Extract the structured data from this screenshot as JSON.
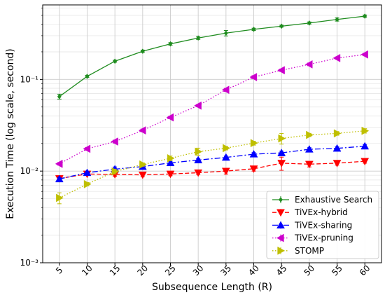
{
  "chart_data": {
    "type": "line",
    "xlabel": "Subsequence Length (R)",
    "ylabel": "Execution Time (log scale, second)",
    "yscale": "log",
    "xlim": [
      2,
      63
    ],
    "ylim": [
      0.001,
      0.65
    ],
    "x": [
      5,
      10,
      15,
      20,
      25,
      30,
      35,
      40,
      45,
      50,
      55,
      60
    ],
    "x_tick_labels": [
      "5",
      "10",
      "15",
      "20",
      "25",
      "30",
      "35",
      "40",
      "45",
      "50",
      "55",
      "60"
    ],
    "y_ticks": [
      0.001,
      0.01,
      0.1
    ],
    "y_tick_labels": [
      "10⁻³",
      "10⁻²",
      "10⁻¹"
    ],
    "grid": true,
    "legend_position": "lower-right",
    "series": [
      {
        "name": "Exhaustive Search",
        "color": "#1f8c1f",
        "linestyle": "solid",
        "marker": "diamond",
        "values": [
          0.065,
          0.108,
          0.158,
          0.203,
          0.244,
          0.283,
          0.32,
          0.352,
          0.381,
          0.412,
          0.451,
          0.49
        ],
        "errors": [
          0.004,
          0.003,
          0.004,
          0.006,
          0.008,
          0.01,
          0.022,
          0.01,
          0.009,
          0.012,
          0.018,
          0.015
        ]
      },
      {
        "name": "TiVEx-hybrid",
        "color": "#ff0000",
        "linestyle": "dashed",
        "marker": "triangle-down",
        "values": [
          0.0083,
          0.0093,
          0.0092,
          0.0091,
          0.0093,
          0.0096,
          0.01,
          0.0106,
          0.0122,
          0.0119,
          0.0122,
          0.0128
        ],
        "errors": [
          0.0003,
          0.0003,
          0.0004,
          0.0004,
          0.0004,
          0.0004,
          0.0007,
          0.0006,
          0.002,
          0.0008,
          0.0006,
          0.0006
        ]
      },
      {
        "name": "TiVEx-sharing",
        "color": "#0000ff",
        "linestyle": "dashdot",
        "marker": "triangle-up",
        "values": [
          0.0082,
          0.0096,
          0.0105,
          0.0112,
          0.0123,
          0.0132,
          0.0141,
          0.0153,
          0.0158,
          0.0173,
          0.0177,
          0.0187
        ],
        "errors": [
          0.0003,
          0.0004,
          0.0006,
          0.0004,
          0.0005,
          0.0005,
          0.0005,
          0.0006,
          0.0007,
          0.0007,
          0.0007,
          0.0008
        ]
      },
      {
        "name": "TiVEx-pruning",
        "color": "#cc00cc",
        "linestyle": "dotted",
        "marker": "triangle-left",
        "values": [
          0.012,
          0.0175,
          0.021,
          0.0278,
          0.0385,
          0.0518,
          0.077,
          0.106,
          0.126,
          0.146,
          0.171,
          0.187
        ],
        "errors": [
          0.0004,
          0.0006,
          0.0008,
          0.001,
          0.0012,
          0.0015,
          0.003,
          0.004,
          0.004,
          0.005,
          0.005,
          0.006
        ]
      },
      {
        "name": "STOMP",
        "color": "#bfbf00",
        "linestyle": "dotted",
        "marker": "triangle-right",
        "values": [
          0.0051,
          0.0072,
          0.0099,
          0.0118,
          0.0138,
          0.0163,
          0.0178,
          0.0202,
          0.0227,
          0.0248,
          0.0258,
          0.0275
        ],
        "errors": [
          0.0007,
          0.0003,
          0.0006,
          0.0005,
          0.0008,
          0.0015,
          0.0008,
          0.001,
          0.003,
          0.001,
          0.0012,
          0.0015
        ]
      }
    ]
  }
}
